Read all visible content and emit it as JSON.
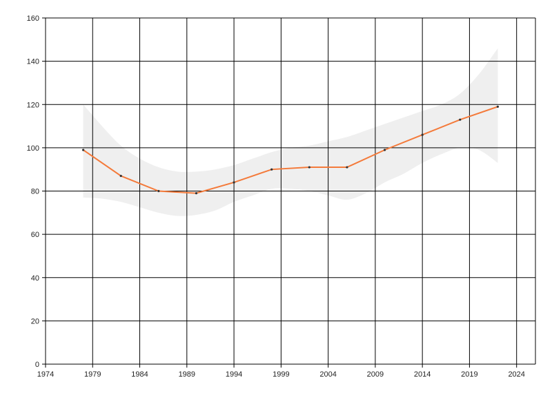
{
  "chart_data": {
    "type": "line",
    "title": "",
    "xlabel": "",
    "ylabel": "",
    "xlim": [
      1974,
      2026
    ],
    "ylim": [
      0,
      160
    ],
    "x_ticks": [
      "1974",
      "1979",
      "1984",
      "1989",
      "1994",
      "1999",
      "2004",
      "2009",
      "2014",
      "2019",
      "2024"
    ],
    "y_ticks": [
      "0",
      "20",
      "40",
      "60",
      "80",
      "100",
      "120",
      "140",
      "160"
    ],
    "grid": true,
    "legend": "none",
    "series": [
      {
        "x": [
          1978,
          1982,
          1986,
          1990,
          1994,
          1998,
          2002,
          2006,
          2010,
          2014,
          2018,
          2022
        ],
        "values": [
          99,
          87,
          80,
          79,
          84,
          90,
          91,
          91,
          99,
          106,
          113,
          119
        ],
        "color": "#f47a3a"
      }
    ],
    "confidence_band": {
      "x": [
        1978,
        1980,
        1982,
        1984,
        1986,
        1988,
        1990,
        1992,
        1994,
        1996,
        1998,
        2000,
        2002,
        2004,
        2006,
        2008,
        2010,
        2012,
        2014,
        2016,
        2018,
        2020,
        2022
      ],
      "upper": [
        120,
        110,
        101,
        95,
        91,
        89,
        89,
        90,
        92,
        95,
        98,
        100,
        101,
        103,
        105,
        108,
        111,
        114,
        117,
        120,
        125,
        134,
        146
      ],
      "lower": [
        77,
        76.5,
        75,
        72.5,
        70,
        68.5,
        69,
        71,
        75,
        78,
        81,
        81,
        80,
        78,
        76,
        79,
        84,
        88,
        93,
        97,
        100,
        99,
        93
      ],
      "color": "#efefef"
    },
    "colors": {
      "line": "#f47a3a",
      "band": "#efefef",
      "grid": "#000000",
      "marker": "#333333"
    }
  }
}
